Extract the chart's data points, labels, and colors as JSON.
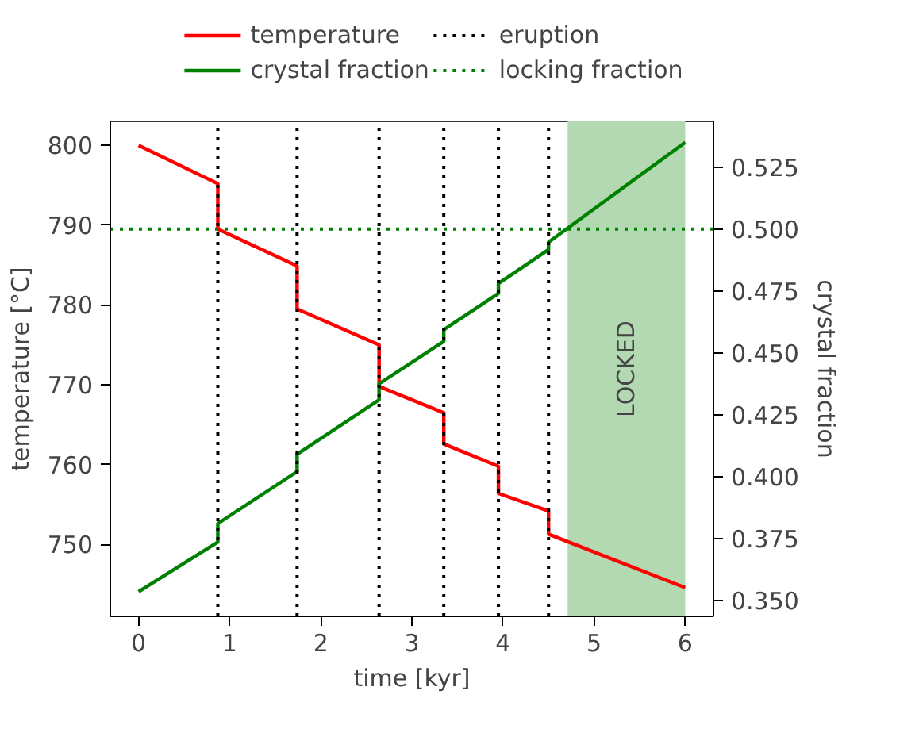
{
  "chart_data": {
    "type": "line",
    "xlabel": "time [kyr]",
    "ylabel": "temperature [°C]",
    "y2label": "crystal fraction",
    "series": [
      {
        "name": "temperature",
        "color": "#ff0000",
        "x": [
          0,
          0.87,
          0.87,
          1.74,
          1.74,
          2.64,
          2.64,
          3.35,
          3.35,
          3.95,
          3.95,
          4.5,
          4.5,
          6
        ],
        "values": [
          800,
          795.2,
          789.5,
          784.9,
          779.5,
          775.0,
          769.8,
          766.5,
          762.6,
          759.8,
          756.4,
          754.2,
          751.3,
          744.6
        ]
      },
      {
        "name": "crystal fraction",
        "color": "#008000",
        "axis": "y2",
        "x": [
          0,
          0.87,
          0.87,
          1.74,
          1.74,
          2.64,
          2.64,
          3.35,
          3.35,
          3.95,
          3.95,
          4.5,
          4.5,
          6
        ],
        "values": [
          0.3535,
          0.3735,
          0.381,
          0.402,
          0.409,
          0.431,
          0.4375,
          0.4546,
          0.4593,
          0.474,
          0.478,
          0.4917,
          0.4947,
          0.535
        ]
      }
    ],
    "ref_lines": [
      {
        "axis": "x",
        "value": 0.87,
        "label": "eruption",
        "color": "#000000",
        "line_style": "dotted"
      },
      {
        "axis": "x",
        "value": 1.74,
        "color": "#000000",
        "line_style": "dotted"
      },
      {
        "axis": "x",
        "value": 2.64,
        "color": "#000000",
        "line_style": "dotted"
      },
      {
        "axis": "x",
        "value": 3.35,
        "color": "#000000",
        "line_style": "dotted"
      },
      {
        "axis": "x",
        "value": 3.95,
        "color": "#000000",
        "line_style": "dotted"
      },
      {
        "axis": "x",
        "value": 4.5,
        "color": "#000000",
        "line_style": "dotted"
      },
      {
        "axis": "y2",
        "value": 0.5,
        "label": "locking fraction",
        "color": "#008000",
        "line_style": "dotted"
      }
    ],
    "bands": [
      {
        "axis": "x",
        "from": 4.71,
        "to": 6,
        "label": "LOCKED",
        "color": "#b2d9b2"
      }
    ],
    "xlim": [
      -0.31,
      6.31
    ],
    "xticks": [
      0,
      1,
      2,
      3,
      4,
      5,
      6
    ],
    "ylim": [
      741,
      803
    ],
    "yticks": [
      750,
      760,
      770,
      780,
      790,
      800
    ],
    "y2lim": [
      0.3435,
      0.5435
    ],
    "y2ticks": [
      {
        "value": 0.35,
        "label": "0.350"
      },
      {
        "value": 0.375,
        "label": "0.375"
      },
      {
        "value": 0.4,
        "label": "0.400"
      },
      {
        "value": 0.425,
        "label": "0.425"
      },
      {
        "value": 0.45,
        "label": "0.450"
      },
      {
        "value": 0.475,
        "label": "0.475"
      },
      {
        "value": 0.5,
        "label": "0.500"
      },
      {
        "value": 0.525,
        "label": "0.525"
      }
    ],
    "grid": false,
    "legend": "top",
    "line_style": "solid",
    "marker": "none"
  }
}
